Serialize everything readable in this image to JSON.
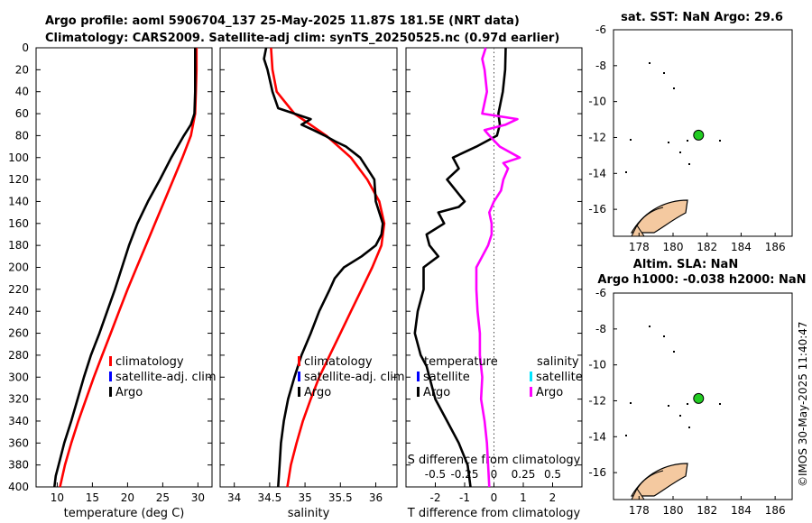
{
  "title": {
    "line1": "Argo profile: aoml 5906704_137 25-May-2025 11.87S 181.5E (NRT data)",
    "line2": "Climatology: CARS2009. Satellite-adj clim: synTS_20250525.nc (0.97d earlier)"
  },
  "credit": "©IMOS 30-May-2025 11:40:47",
  "colors": {
    "climatology": "#ff0000",
    "satellite_clim": "#0000ff",
    "argo": "#000000",
    "sal_sat": "#00e5ff",
    "sal_argo": "#ff00ff",
    "float_marker": "#22cc22",
    "land": "#f4c9a0"
  },
  "chart_data": [
    {
      "id": "temperature",
      "type": "line",
      "xlabel": "temperature (deg C)",
      "ylabel": "",
      "xlim": [
        7,
        32
      ],
      "ylim": [
        400,
        0
      ],
      "xticks": [
        10,
        15,
        20,
        25,
        30
      ],
      "yticks": [
        0,
        20,
        40,
        60,
        80,
        100,
        120,
        140,
        160,
        180,
        200,
        220,
        240,
        260,
        280,
        300,
        320,
        340,
        360,
        380,
        400
      ],
      "legend": [
        "climatology",
        "satellite-adj. clim",
        "Argo"
      ],
      "series": [
        {
          "name": "climatology",
          "color": "#ff0000",
          "depth": [
            0,
            20,
            40,
            60,
            80,
            100,
            120,
            140,
            160,
            180,
            200,
            220,
            240,
            260,
            280,
            300,
            320,
            340,
            360,
            380,
            400
          ],
          "values": [
            29.8,
            29.8,
            29.7,
            29.6,
            29.0,
            27.8,
            26.5,
            25.2,
            23.9,
            22.6,
            21.3,
            20.0,
            18.8,
            17.6,
            16.4,
            15.2,
            14.1,
            13.0,
            12.0,
            11.1,
            10.4
          ]
        },
        {
          "name": "Argo",
          "color": "#000000",
          "depth": [
            0,
            20,
            40,
            60,
            70,
            80,
            100,
            120,
            140,
            160,
            180,
            200,
            220,
            240,
            260,
            270,
            280,
            300,
            320,
            340,
            360,
            380,
            390,
            400
          ],
          "values": [
            29.6,
            29.6,
            29.6,
            29.5,
            29.0,
            28.0,
            26.2,
            24.6,
            22.9,
            21.4,
            20.2,
            19.2,
            18.2,
            17.1,
            16.0,
            15.4,
            14.8,
            13.8,
            12.9,
            12.0,
            11.0,
            10.2,
            9.8,
            9.6
          ]
        }
      ]
    },
    {
      "id": "salinity",
      "type": "line",
      "xlabel": "salinity",
      "ylabel": "",
      "xlim": [
        33.8,
        36.3
      ],
      "ylim": [
        400,
        0
      ],
      "xticks": [
        34,
        34.5,
        35,
        35.5,
        36
      ],
      "legend": [
        "climatology",
        "satellite-adj. clim",
        "Argo"
      ],
      "series": [
        {
          "name": "climatology",
          "color": "#ff0000",
          "depth": [
            0,
            20,
            40,
            60,
            80,
            100,
            120,
            140,
            160,
            180,
            200,
            220,
            240,
            260,
            280,
            300,
            320,
            340,
            360,
            380,
            400
          ],
          "values": [
            34.52,
            34.54,
            34.6,
            34.85,
            35.3,
            35.65,
            35.88,
            36.05,
            36.12,
            36.08,
            35.95,
            35.8,
            35.65,
            35.5,
            35.35,
            35.2,
            35.08,
            34.97,
            34.88,
            34.8,
            34.75
          ]
        },
        {
          "name": "Argo",
          "color": "#000000",
          "depth": [
            0,
            10,
            20,
            40,
            55,
            60,
            65,
            70,
            75,
            80,
            85,
            90,
            95,
            100,
            110,
            120,
            140,
            150,
            160,
            170,
            180,
            190,
            200,
            210,
            220,
            240,
            260,
            280,
            300,
            320,
            340,
            360,
            380,
            400
          ],
          "values": [
            34.45,
            34.42,
            34.47,
            34.54,
            34.62,
            34.85,
            35.08,
            34.95,
            35.12,
            35.28,
            35.42,
            35.58,
            35.68,
            35.78,
            35.88,
            35.98,
            36.0,
            36.05,
            36.1,
            36.08,
            36.0,
            35.8,
            35.55,
            35.42,
            35.35,
            35.2,
            35.08,
            34.95,
            34.85,
            34.76,
            34.7,
            34.66,
            34.64,
            34.62
          ]
        }
      ]
    },
    {
      "id": "difference",
      "type": "line",
      "xlabel": "T difference from climatology",
      "x2label": "S difference from climatology",
      "xlim": [
        -3,
        3
      ],
      "x2lim": [
        -0.75,
        0.75
      ],
      "ylim": [
        400,
        0
      ],
      "xticks": [
        -2,
        -1,
        0,
        1,
        2
      ],
      "xticklabels": [
        "-2",
        "-1",
        "0",
        "1",
        "2"
      ],
      "x2ticks": [
        -0.5,
        -0.25,
        0,
        0.25,
        0.5
      ],
      "x2ticklabels": [
        "-0.5",
        "-0.25",
        "0",
        "0.25",
        "0.5"
      ],
      "legend_temp_title": "temperature",
      "legend_sal_title": "salinity",
      "legend_temp": [
        "satellite",
        "Argo"
      ],
      "legend_sal": [
        "satellite",
        "Argo"
      ],
      "series": [
        {
          "name": "T diff Argo",
          "color": "#000000",
          "axis": "T",
          "depth": [
            0,
            20,
            40,
            60,
            70,
            80,
            90,
            100,
            110,
            120,
            130,
            140,
            145,
            150,
            160,
            170,
            180,
            190,
            200,
            220,
            240,
            260,
            280,
            290,
            300,
            320,
            340,
            360,
            380,
            400
          ],
          "values": [
            0.4,
            0.38,
            0.3,
            0.15,
            0.2,
            0.1,
            -0.6,
            -1.4,
            -1.2,
            -1.6,
            -1.3,
            -1.0,
            -1.2,
            -1.9,
            -1.7,
            -2.3,
            -2.2,
            -1.9,
            -2.4,
            -2.4,
            -2.6,
            -2.7,
            -2.5,
            -2.3,
            -2.2,
            -2.0,
            -1.6,
            -1.2,
            -0.9,
            -0.8
          ]
        },
        {
          "name": "S diff Argo",
          "color": "#ff00ff",
          "axis": "S",
          "depth": [
            0,
            10,
            20,
            40,
            60,
            65,
            70,
            75,
            80,
            90,
            100,
            105,
            110,
            120,
            130,
            140,
            150,
            160,
            170,
            180,
            190,
            200,
            220,
            240,
            260,
            280,
            300,
            320,
            340,
            360,
            380,
            400
          ],
          "values": [
            -0.07,
            -0.1,
            -0.08,
            -0.06,
            -0.1,
            0.2,
            0.1,
            -0.08,
            -0.04,
            0.05,
            0.22,
            0.08,
            0.12,
            0.08,
            0.06,
            0.0,
            -0.04,
            -0.02,
            -0.02,
            -0.05,
            -0.1,
            -0.15,
            -0.15,
            -0.14,
            -0.12,
            -0.12,
            -0.1,
            -0.11,
            -0.08,
            -0.06,
            -0.05,
            -0.04
          ]
        }
      ]
    },
    {
      "id": "map-sst",
      "type": "scatter",
      "title": "sat. SST: NaN Argo: 29.6",
      "xlim": [
        176.5,
        187
      ],
      "ylim": [
        -17.5,
        -6
      ],
      "xticks": [
        178,
        180,
        182,
        184,
        186
      ],
      "yticks": [
        -6,
        -8,
        -10,
        -12,
        -14,
        -16
      ],
      "points": [
        {
          "lon": 181.5,
          "lat": -11.87,
          "label": "Argo float"
        }
      ]
    },
    {
      "id": "map-sla",
      "type": "scatter",
      "title": "Altim. SLA: NaN",
      "subtitle": "Argo h1000: -0.038 h2000: NaN",
      "xlim": [
        176.5,
        187
      ],
      "ylim": [
        -17.5,
        -6
      ],
      "xticks": [
        178,
        180,
        182,
        184,
        186
      ],
      "yticks": [
        -6,
        -8,
        -10,
        -12,
        -14,
        -16
      ],
      "points": [
        {
          "lon": 181.5,
          "lat": -11.87,
          "label": "Argo float"
        }
      ]
    }
  ]
}
